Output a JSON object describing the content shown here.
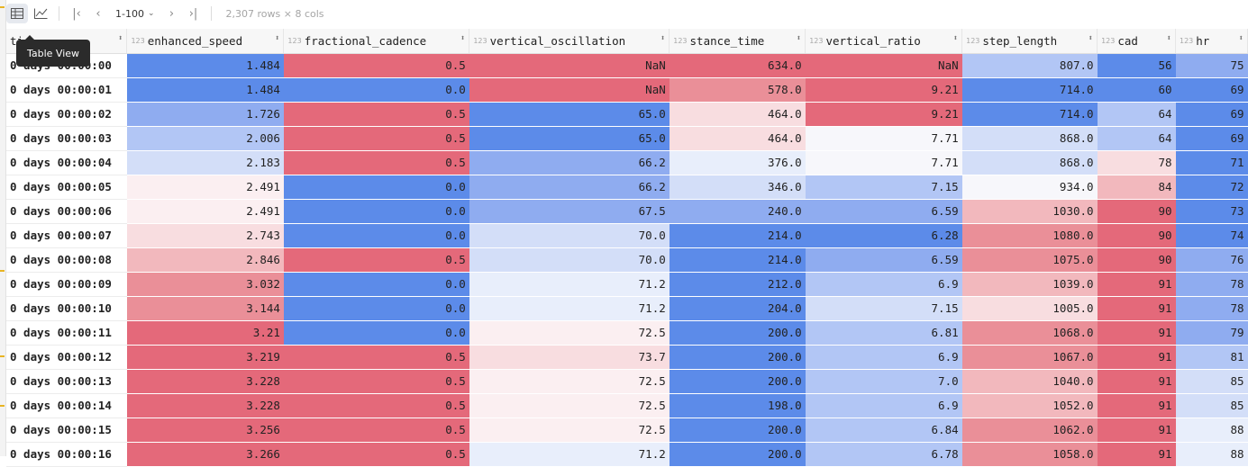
{
  "toolbar": {
    "table_view_icon": "table-icon",
    "chart_view_icon": "line-chart-icon",
    "first_icon": "first-page-icon",
    "prev_icon": "prev-page-icon",
    "range": "1-100",
    "next_icon": "next-page-icon",
    "last_icon": "last-page-icon",
    "rows_info": "2,307 rows × 8 cols"
  },
  "tooltip": "Table View",
  "columns": [
    {
      "label": "ti",
      "type": ""
    },
    {
      "label": "enhanced_speed",
      "type": "123"
    },
    {
      "label": "fractional_cadence",
      "type": "123"
    },
    {
      "label": "vertical_oscillation",
      "type": "123"
    },
    {
      "label": "stance_time",
      "type": "123"
    },
    {
      "label": "vertical_ratio",
      "type": "123"
    },
    {
      "label": "step_length",
      "type": "123"
    },
    {
      "label": "cad",
      "type": "123"
    },
    {
      "label": "hr",
      "type": "123"
    }
  ],
  "rows": [
    [
      "0 days 00:00:00",
      "1.484",
      "0.5",
      "NaN",
      "634.0",
      "NaN",
      "807.0",
      "56",
      "75"
    ],
    [
      "0 days 00:00:01",
      "1.484",
      "0.0",
      "NaN",
      "578.0",
      "9.21",
      "714.0",
      "60",
      "69"
    ],
    [
      "0 days 00:00:02",
      "1.726",
      "0.5",
      "65.0",
      "464.0",
      "9.21",
      "714.0",
      "64",
      "69"
    ],
    [
      "0 days 00:00:03",
      "2.006",
      "0.5",
      "65.0",
      "464.0",
      "7.71",
      "868.0",
      "64",
      "69"
    ],
    [
      "0 days 00:00:04",
      "2.183",
      "0.5",
      "66.2",
      "376.0",
      "7.71",
      "868.0",
      "78",
      "71"
    ],
    [
      "0 days 00:00:05",
      "2.491",
      "0.0",
      "66.2",
      "346.0",
      "7.15",
      "934.0",
      "84",
      "72"
    ],
    [
      "0 days 00:00:06",
      "2.491",
      "0.0",
      "67.5",
      "240.0",
      "6.59",
      "1030.0",
      "90",
      "73"
    ],
    [
      "0 days 00:00:07",
      "2.743",
      "0.0",
      "70.0",
      "214.0",
      "6.28",
      "1080.0",
      "90",
      "74"
    ],
    [
      "0 days 00:00:08",
      "2.846",
      "0.5",
      "70.0",
      "214.0",
      "6.59",
      "1075.0",
      "90",
      "76"
    ],
    [
      "0 days 00:00:09",
      "3.032",
      "0.0",
      "71.2",
      "212.0",
      "6.9",
      "1039.0",
      "91",
      "78"
    ],
    [
      "0 days 00:00:10",
      "3.144",
      "0.0",
      "71.2",
      "204.0",
      "7.15",
      "1005.0",
      "91",
      "78"
    ],
    [
      "0 days 00:00:11",
      "3.21",
      "0.0",
      "72.5",
      "200.0",
      "6.81",
      "1068.0",
      "91",
      "79"
    ],
    [
      "0 days 00:00:12",
      "3.219",
      "0.5",
      "73.7",
      "200.0",
      "6.9",
      "1067.0",
      "91",
      "81"
    ],
    [
      "0 days 00:00:13",
      "3.228",
      "0.5",
      "72.5",
      "200.0",
      "7.0",
      "1040.0",
      "91",
      "85"
    ],
    [
      "0 days 00:00:14",
      "3.228",
      "0.5",
      "72.5",
      "198.0",
      "6.9",
      "1052.0",
      "91",
      "85"
    ],
    [
      "0 days 00:00:15",
      "3.256",
      "0.5",
      "72.5",
      "200.0",
      "6.84",
      "1062.0",
      "91",
      "88"
    ],
    [
      "0 days 00:00:16",
      "3.266",
      "0.5",
      "71.2",
      "200.0",
      "6.78",
      "1058.0",
      "91",
      "88"
    ]
  ],
  "heat": [
    [
      "",
      "pos3",
      "neg3",
      "neg3",
      "neg3",
      "neg3",
      "pos1",
      "pos3",
      "pos2"
    ],
    [
      "",
      "pos3",
      "pos3",
      "neg3",
      "neg2",
      "neg3",
      "pos3",
      "pos3",
      "pos3"
    ],
    [
      "",
      "pos2",
      "neg3",
      "pos3",
      "neg0",
      "neg3",
      "pos3",
      "pos1",
      "pos3"
    ],
    [
      "",
      "pos1",
      "neg3",
      "pos3",
      "neg0",
      "mid",
      "pos0",
      "pos1",
      "pos3"
    ],
    [
      "",
      "pos0",
      "neg3",
      "pos2",
      "posl",
      "mid",
      "pos0",
      "neg0",
      "pos3"
    ],
    [
      "",
      "negl",
      "pos3",
      "pos2",
      "pos0",
      "pos1",
      "mid",
      "neg1",
      "pos3"
    ],
    [
      "",
      "negl",
      "pos3",
      "pos2",
      "pos2",
      "pos2",
      "neg1",
      "neg3",
      "pos3"
    ],
    [
      "",
      "neg0",
      "pos3",
      "pos0",
      "pos3",
      "pos3",
      "neg2",
      "neg3",
      "pos3"
    ],
    [
      "",
      "neg1",
      "neg3",
      "pos0",
      "pos3",
      "pos2",
      "neg2",
      "neg3",
      "pos2"
    ],
    [
      "",
      "neg2",
      "pos3",
      "posl",
      "pos3",
      "pos1",
      "neg1",
      "neg3",
      "pos2"
    ],
    [
      "",
      "neg2",
      "pos3",
      "posl",
      "pos3",
      "pos0",
      "neg0",
      "neg3",
      "pos2"
    ],
    [
      "",
      "neg3",
      "pos3",
      "negl",
      "pos3",
      "pos1",
      "neg2",
      "neg3",
      "pos2"
    ],
    [
      "",
      "neg3",
      "neg3",
      "neg0",
      "pos3",
      "pos1",
      "neg2",
      "neg3",
      "pos1"
    ],
    [
      "",
      "neg3",
      "neg3",
      "negl",
      "pos3",
      "pos1",
      "neg1",
      "neg3",
      "pos0"
    ],
    [
      "",
      "neg3",
      "neg3",
      "negl",
      "pos3",
      "pos1",
      "neg1",
      "neg3",
      "pos0"
    ],
    [
      "",
      "neg3",
      "neg3",
      "negl",
      "pos3",
      "pos1",
      "neg2",
      "neg3",
      "posl"
    ],
    [
      "",
      "neg3",
      "neg3",
      "posl",
      "pos3",
      "pos1",
      "neg2",
      "neg3",
      "posl"
    ]
  ]
}
